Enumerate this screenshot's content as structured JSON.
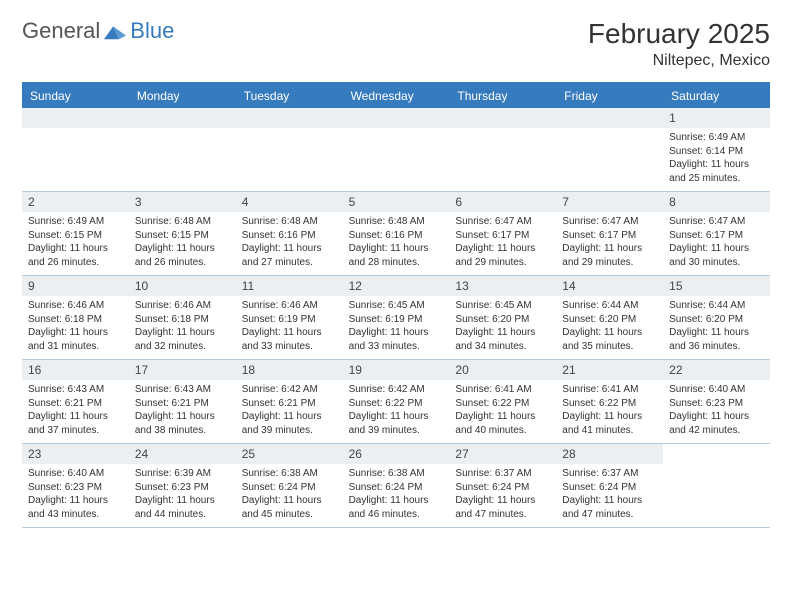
{
  "logo": {
    "t1": "General",
    "t2": "Blue"
  },
  "title": {
    "month": "February 2025",
    "location": "Niltepec, Mexico"
  },
  "headers": [
    "Sunday",
    "Monday",
    "Tuesday",
    "Wednesday",
    "Thursday",
    "Friday",
    "Saturday"
  ],
  "colors": {
    "brand": "#377bbf",
    "daybg": "#eceff1",
    "border": "#b8c8d8"
  },
  "days": [
    {
      "n": "1",
      "sr": "6:49 AM",
      "ss": "6:14 PM",
      "dl": "11 hours and 25 minutes."
    },
    {
      "n": "2",
      "sr": "6:49 AM",
      "ss": "6:15 PM",
      "dl": "11 hours and 26 minutes."
    },
    {
      "n": "3",
      "sr": "6:48 AM",
      "ss": "6:15 PM",
      "dl": "11 hours and 26 minutes."
    },
    {
      "n": "4",
      "sr": "6:48 AM",
      "ss": "6:16 PM",
      "dl": "11 hours and 27 minutes."
    },
    {
      "n": "5",
      "sr": "6:48 AM",
      "ss": "6:16 PM",
      "dl": "11 hours and 28 minutes."
    },
    {
      "n": "6",
      "sr": "6:47 AM",
      "ss": "6:17 PM",
      "dl": "11 hours and 29 minutes."
    },
    {
      "n": "7",
      "sr": "6:47 AM",
      "ss": "6:17 PM",
      "dl": "11 hours and 29 minutes."
    },
    {
      "n": "8",
      "sr": "6:47 AM",
      "ss": "6:17 PM",
      "dl": "11 hours and 30 minutes."
    },
    {
      "n": "9",
      "sr": "6:46 AM",
      "ss": "6:18 PM",
      "dl": "11 hours and 31 minutes."
    },
    {
      "n": "10",
      "sr": "6:46 AM",
      "ss": "6:18 PM",
      "dl": "11 hours and 32 minutes."
    },
    {
      "n": "11",
      "sr": "6:46 AM",
      "ss": "6:19 PM",
      "dl": "11 hours and 33 minutes."
    },
    {
      "n": "12",
      "sr": "6:45 AM",
      "ss": "6:19 PM",
      "dl": "11 hours and 33 minutes."
    },
    {
      "n": "13",
      "sr": "6:45 AM",
      "ss": "6:20 PM",
      "dl": "11 hours and 34 minutes."
    },
    {
      "n": "14",
      "sr": "6:44 AM",
      "ss": "6:20 PM",
      "dl": "11 hours and 35 minutes."
    },
    {
      "n": "15",
      "sr": "6:44 AM",
      "ss": "6:20 PM",
      "dl": "11 hours and 36 minutes."
    },
    {
      "n": "16",
      "sr": "6:43 AM",
      "ss": "6:21 PM",
      "dl": "11 hours and 37 minutes."
    },
    {
      "n": "17",
      "sr": "6:43 AM",
      "ss": "6:21 PM",
      "dl": "11 hours and 38 minutes."
    },
    {
      "n": "18",
      "sr": "6:42 AM",
      "ss": "6:21 PM",
      "dl": "11 hours and 39 minutes."
    },
    {
      "n": "19",
      "sr": "6:42 AM",
      "ss": "6:22 PM",
      "dl": "11 hours and 39 minutes."
    },
    {
      "n": "20",
      "sr": "6:41 AM",
      "ss": "6:22 PM",
      "dl": "11 hours and 40 minutes."
    },
    {
      "n": "21",
      "sr": "6:41 AM",
      "ss": "6:22 PM",
      "dl": "11 hours and 41 minutes."
    },
    {
      "n": "22",
      "sr": "6:40 AM",
      "ss": "6:23 PM",
      "dl": "11 hours and 42 minutes."
    },
    {
      "n": "23",
      "sr": "6:40 AM",
      "ss": "6:23 PM",
      "dl": "11 hours and 43 minutes."
    },
    {
      "n": "24",
      "sr": "6:39 AM",
      "ss": "6:23 PM",
      "dl": "11 hours and 44 minutes."
    },
    {
      "n": "25",
      "sr": "6:38 AM",
      "ss": "6:24 PM",
      "dl": "11 hours and 45 minutes."
    },
    {
      "n": "26",
      "sr": "6:38 AM",
      "ss": "6:24 PM",
      "dl": "11 hours and 46 minutes."
    },
    {
      "n": "27",
      "sr": "6:37 AM",
      "ss": "6:24 PM",
      "dl": "11 hours and 47 minutes."
    },
    {
      "n": "28",
      "sr": "6:37 AM",
      "ss": "6:24 PM",
      "dl": "11 hours and 47 minutes."
    }
  ],
  "labels": {
    "sr": "Sunrise: ",
    "ss": "Sunset: ",
    "dl": "Daylight: "
  },
  "startOffset": 6
}
